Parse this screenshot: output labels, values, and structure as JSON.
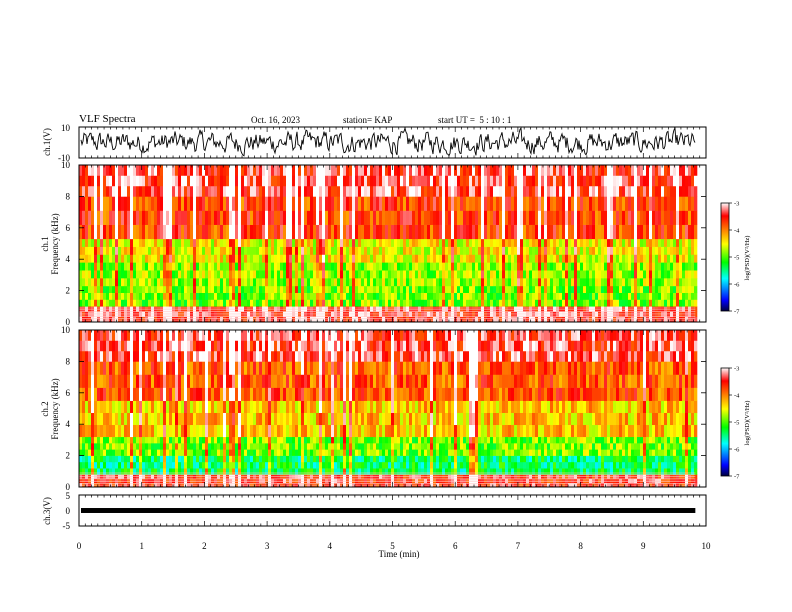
{
  "header": {
    "title": "VLF Spectra",
    "date": "Oct. 16, 2023",
    "station": "station= KAP",
    "start_ut": "start UT =  5 : 10 : 1"
  },
  "chart_data": [
    {
      "type": "line",
      "panel": "ch1-waveform",
      "ylabel": "ch.1(V)",
      "ylim": [
        -10,
        10
      ],
      "yticks": [
        "10",
        "-10"
      ],
      "x_range_min": [
        0,
        9.83
      ],
      "series_color": "#000000"
    },
    {
      "type": "heatmap",
      "panel": "ch1-spectrogram",
      "ylabel_channel": "ch.1",
      "ylabel": "Frequency (kHz)",
      "ylim": [
        0,
        10
      ],
      "yticks": [
        "0",
        "2",
        "4",
        "6",
        "8",
        "10"
      ],
      "x_range_min": [
        0,
        9.83
      ],
      "colorbar": {
        "label": "log(PSD)(V²/Hz)",
        "range": [
          -7,
          -3
        ],
        "ticks": [
          "-3",
          "-4",
          "-5",
          "-6",
          "-7"
        ]
      },
      "bands": [
        {
          "from_khz": 0.0,
          "to_khz": 1.0,
          "level": -3.4
        },
        {
          "from_khz": 1.0,
          "to_khz": 2.3,
          "level": -4.9
        },
        {
          "from_khz": 2.3,
          "to_khz": 3.8,
          "level": -4.8
        },
        {
          "from_khz": 3.8,
          "to_khz": 5.3,
          "level": -4.5
        },
        {
          "from_khz": 5.3,
          "to_khz": 8.0,
          "level": -3.7
        },
        {
          "from_khz": 8.0,
          "to_khz": 10.0,
          "level": -3.4
        }
      ]
    },
    {
      "type": "heatmap",
      "panel": "ch2-spectrogram",
      "ylabel_channel": "ch.2",
      "ylabel": "Frequency (kHz)",
      "ylim": [
        0,
        10
      ],
      "yticks": [
        "0",
        "2",
        "4",
        "6",
        "8",
        "10"
      ],
      "x_range_min": [
        0,
        9.83
      ],
      "colorbar": {
        "label": "log(PSD)(V²/Hz)",
        "range": [
          -7,
          -3
        ],
        "ticks": [
          "-3",
          "-4",
          "-5",
          "-6",
          "-7"
        ]
      },
      "bands": [
        {
          "from_khz": 0.0,
          "to_khz": 0.8,
          "level": -3.5
        },
        {
          "from_khz": 0.8,
          "to_khz": 2.0,
          "level": -5.4
        },
        {
          "from_khz": 2.0,
          "to_khz": 3.2,
          "level": -4.9
        },
        {
          "from_khz": 3.2,
          "to_khz": 5.5,
          "level": -4.3
        },
        {
          "from_khz": 5.5,
          "to_khz": 8.0,
          "level": -3.8
        },
        {
          "from_khz": 8.0,
          "to_khz": 10.0,
          "level": -3.4
        }
      ]
    },
    {
      "type": "line",
      "panel": "ch3-waveform",
      "ylabel": "ch.3(V)",
      "ylim": [
        -5,
        5
      ],
      "yticks": [
        "5",
        "0",
        "-5"
      ],
      "x_range_min": [
        0,
        9.83
      ],
      "value_range": [
        -0.8,
        0.8
      ],
      "xlabel": "Time (min)",
      "xticks": [
        "0",
        "1",
        "2",
        "3",
        "4",
        "5",
        "6",
        "7",
        "8",
        "9",
        "10"
      ],
      "xlim": [
        0,
        10
      ]
    }
  ]
}
